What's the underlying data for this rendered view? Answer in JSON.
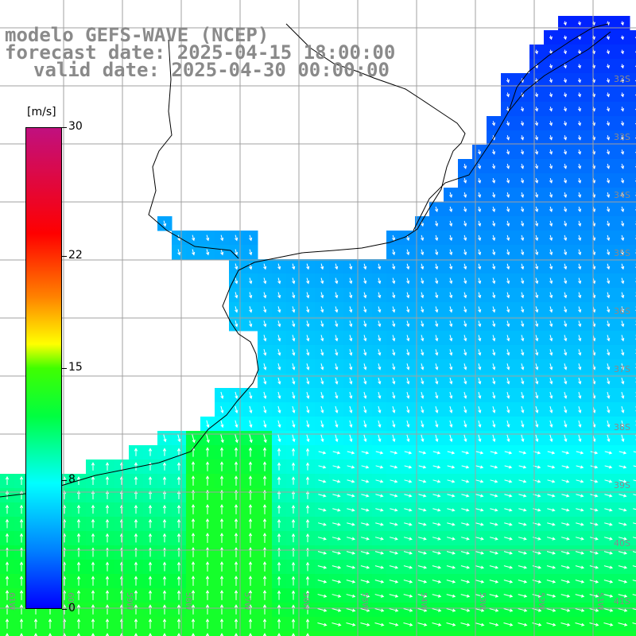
{
  "title": {
    "line1": "modelo GEFS-WAVE (NCEP)",
    "line2": "forecast date: 2025-04-15 18:00:00",
    "line3": "valid date: 2025-04-30 00:00:00"
  },
  "colorbar": {
    "unit": "[m/s]",
    "ticks": [
      "30",
      "22",
      "15",
      "8",
      "0"
    ],
    "tick_values": [
      30,
      22,
      15,
      8,
      0
    ],
    "range": [
      0,
      30
    ]
  },
  "lat_labels": [
    "32S",
    "33S",
    "34S",
    "35S",
    "36S",
    "37S",
    "38S",
    "39S",
    "40S",
    "41S"
  ],
  "lon_labels": [
    "61W",
    "60W",
    "59W",
    "58W",
    "57W",
    "56W",
    "55W",
    "54W",
    "53W",
    "52W",
    "51W"
  ],
  "colors": {
    "land": "#ffffff",
    "grid": "#a0a0a0",
    "coast": "#000000",
    "arrow": "#ffffff",
    "label": "#8a8a8a"
  }
}
